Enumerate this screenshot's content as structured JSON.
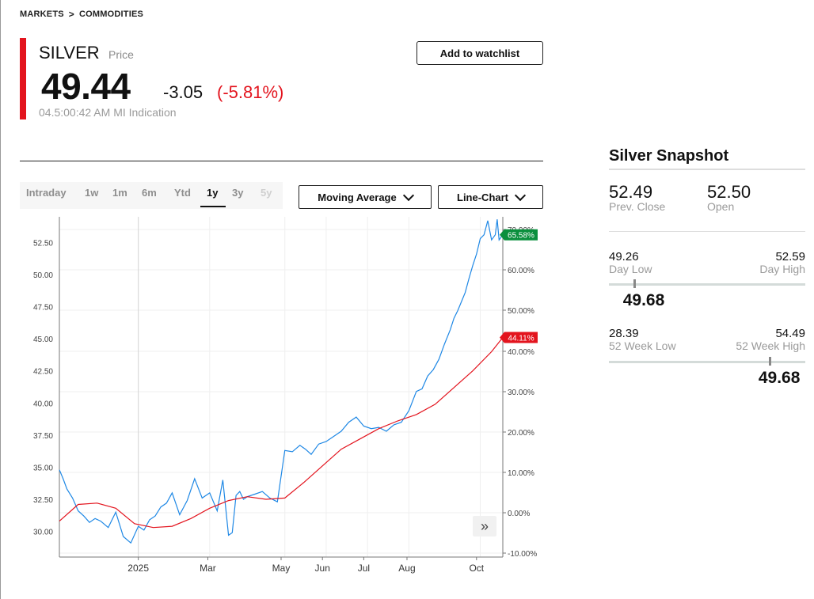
{
  "breadcrumb": {
    "items": [
      "MARKETS",
      "COMMODITIES"
    ],
    "separator": ">"
  },
  "quote": {
    "symbol": "SILVER",
    "symbol_type": "Price",
    "last": "49.44",
    "change": "-3.05",
    "change_pct": "(-5.81%)",
    "timestamp": "04.5:00:42 AM",
    "indication": "MI Indication",
    "accent_color": "#e3141e"
  },
  "actions": {
    "watchlist_label": "Add to watchlist"
  },
  "range_tabs": [
    {
      "label": "Intraday",
      "state": "normal"
    },
    {
      "label": "1w",
      "state": "normal"
    },
    {
      "label": "1m",
      "state": "normal"
    },
    {
      "label": "6m",
      "state": "normal"
    },
    {
      "label": "Ytd",
      "state": "normal"
    },
    {
      "label": "1y",
      "state": "active"
    },
    {
      "label": "3y",
      "state": "normal"
    },
    {
      "label": "5y",
      "state": "disabled"
    }
  ],
  "controls": {
    "moving_average_label": "Moving Average",
    "chart_type_label": "Line-Chart",
    "chevron_icon": "chevron-down-icon",
    "expand_icon": "double-chevron-right-icon"
  },
  "chart_data": {
    "type": "line",
    "x_ticks": [
      "2025",
      "Mar",
      "May",
      "Jun",
      "Jul",
      "Aug",
      "Oct"
    ],
    "y_left_ticks": [
      "52.50",
      "50.00",
      "47.50",
      "45.00",
      "42.50",
      "40.00",
      "37.50",
      "35.00",
      "32.50",
      "30.00"
    ],
    "y_right_ticks": [
      "70.00%",
      "60.00%",
      "50.00%",
      "40.00%",
      "30.00%",
      "20.00%",
      "10.00%",
      "0.00%",
      "-10.00%"
    ],
    "ylim_left": [
      28.0,
      54.5
    ],
    "grid": true,
    "series": [
      {
        "color": "#1f88e5",
        "x_months": [
          0.0,
          0.1,
          0.2,
          0.35,
          0.5,
          0.65,
          0.8,
          0.95,
          1.1,
          1.3,
          1.5,
          1.7,
          1.9,
          2.1,
          2.25,
          2.4,
          2.55,
          2.7,
          2.85,
          3.0,
          3.2,
          3.4,
          3.6,
          3.8,
          4.0,
          4.2,
          4.35,
          4.5,
          4.6,
          4.7,
          4.8,
          4.9,
          5.0,
          5.2,
          5.4,
          5.6,
          5.8,
          6.0,
          6.2,
          6.4,
          6.55,
          6.7,
          6.9,
          7.1,
          7.3,
          7.5,
          7.7,
          7.9,
          8.1,
          8.3,
          8.5,
          8.7,
          8.9,
          9.1,
          9.3,
          9.5,
          9.65,
          9.8,
          9.95,
          10.1,
          10.25,
          10.4,
          10.5,
          10.6,
          10.7,
          10.8,
          10.9,
          11.0,
          11.1,
          11.2,
          11.3,
          11.4,
          11.5,
          11.6,
          11.65,
          11.7,
          11.8
        ],
        "values": [
          34.8,
          34.1,
          33.3,
          32.6,
          31.6,
          31.2,
          30.7,
          31.0,
          30.8,
          30.3,
          31.5,
          29.6,
          29.1,
          30.4,
          30.1,
          30.9,
          31.2,
          31.9,
          32.2,
          33.0,
          31.3,
          32.4,
          34.1,
          32.6,
          33.0,
          31.6,
          34.0,
          29.7,
          29.9,
          32.8,
          33.1,
          32.5,
          32.7,
          32.9,
          33.1,
          32.6,
          32.3,
          36.3,
          36.2,
          36.7,
          36.4,
          36.0,
          36.8,
          37.0,
          37.4,
          37.8,
          38.5,
          38.9,
          38.2,
          38.0,
          38.1,
          37.8,
          38.3,
          38.5,
          39.4,
          40.9,
          41.1,
          42.1,
          42.6,
          43.4,
          44.6,
          45.7,
          46.6,
          47.2,
          47.9,
          48.6,
          49.7,
          50.7,
          51.6,
          52.8,
          53.1,
          54.2,
          52.7,
          53.1,
          54.3,
          52.7,
          53.1
        ]
      },
      {
        "color": "#e3141e",
        "x_months": [
          0.0,
          0.5,
          1.0,
          1.5,
          2.0,
          2.5,
          3.0,
          3.5,
          4.0,
          4.5,
          5.0,
          5.5,
          6.0,
          6.5,
          7.0,
          7.5,
          8.0,
          8.5,
          9.0,
          9.5,
          10.0,
          10.5,
          11.0,
          11.5,
          11.8
        ],
        "values": [
          30.8,
          32.1,
          32.2,
          31.8,
          30.6,
          30.3,
          30.4,
          31.0,
          31.8,
          32.4,
          32.7,
          32.5,
          32.6,
          33.8,
          35.1,
          36.4,
          37.2,
          38.0,
          38.6,
          39.1,
          39.9,
          41.2,
          42.5,
          44.0,
          45.1
        ]
      }
    ],
    "flags": [
      {
        "label": "65.58%",
        "color": "#0a8f3d"
      },
      {
        "label": "44.11%",
        "color": "#e3141e"
      }
    ]
  },
  "snapshot": {
    "title": "Silver Snapshot",
    "prev_close": {
      "value": "52.49",
      "label": "Prev. Close"
    },
    "open": {
      "value": "52.50",
      "label": "Open"
    },
    "day_range": {
      "low": "49.26",
      "low_label": "Day Low",
      "high": "52.59",
      "high_label": "Day High",
      "current": "49.68",
      "position": 0.13
    },
    "week52_range": {
      "low": "28.39",
      "low_label": "52 Week Low",
      "high": "54.49",
      "high_label": "52 Week High",
      "current": "49.68",
      "position": 0.82
    }
  }
}
